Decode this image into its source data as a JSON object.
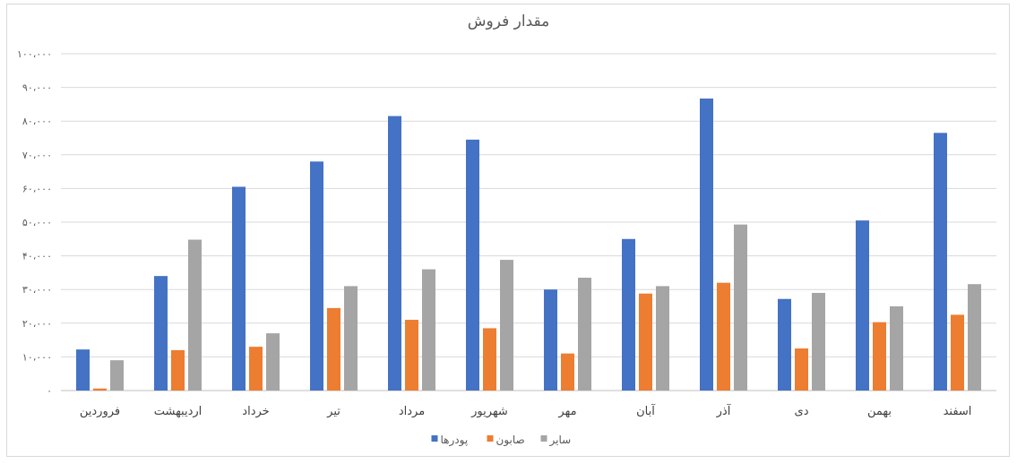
{
  "chart_data": {
    "type": "bar",
    "title": "مقدار فروش",
    "categories": [
      "فروردین",
      "اردیبهشت",
      "خرداد",
      "تیر",
      "مرداد",
      "شهریور",
      "مهر",
      "آبان",
      "آذر",
      "دی",
      "بهمن",
      "اسفند"
    ],
    "series": [
      {
        "name": "پودرها",
        "color": "#4472C4",
        "values": [
          12200,
          34000,
          60500,
          68000,
          81500,
          74500,
          30000,
          45000,
          86700,
          27200,
          50500,
          76500
        ]
      },
      {
        "name": "صابون",
        "color": "#ED7D31",
        "values": [
          600,
          12000,
          13000,
          24500,
          21000,
          18500,
          11000,
          28800,
          32000,
          12500,
          20300,
          22500
        ]
      },
      {
        "name": "سایر",
        "color": "#A5A5A5",
        "values": [
          9000,
          44800,
          17000,
          31000,
          36000,
          38800,
          33500,
          31000,
          49300,
          29000,
          25000,
          31600
        ]
      }
    ],
    "yticks": [
      "۰",
      "۱۰،۰۰۰",
      "۲۰،۰۰۰",
      "۳۰،۰۰۰",
      "۴۰،۰۰۰",
      "۵۰،۰۰۰",
      "۶۰،۰۰۰",
      "۷۰،۰۰۰",
      "۸۰،۰۰۰",
      "۹۰،۰۰۰",
      "۱۰۰،۰۰۰"
    ],
    "ylim": [
      0,
      100000
    ],
    "grid": true,
    "legend_position": "bottom"
  }
}
